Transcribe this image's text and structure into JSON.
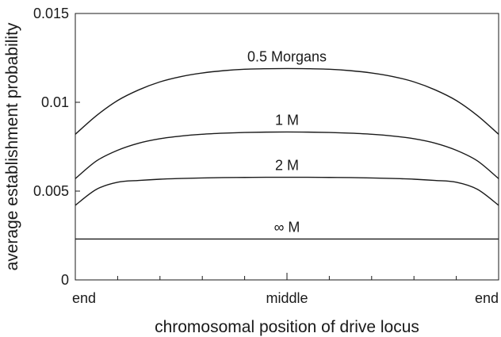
{
  "chart_data": {
    "type": "line",
    "title": "",
    "xlabel": "chromosomal position of drive locus",
    "ylabel": "average establishment probability",
    "ylim": [
      0,
      0.015
    ],
    "y_ticks": [
      "0",
      "0.005",
      "0.01",
      "0.015"
    ],
    "x_ticks": [
      "end",
      "middle",
      "end"
    ],
    "grid": false,
    "x": [
      0,
      0.05,
      0.1,
      0.15,
      0.2,
      0.25,
      0.3,
      0.35,
      0.4,
      0.45,
      0.5,
      0.55,
      0.6,
      0.65,
      0.7,
      0.75,
      0.8,
      0.85,
      0.9,
      0.95,
      1.0
    ],
    "series": [
      {
        "name": "0.5 Morgans",
        "color": "#1a1a1a",
        "values": [
          0.0082,
          0.00925,
          0.0101,
          0.0107,
          0.01115,
          0.01145,
          0.01165,
          0.01178,
          0.01186,
          0.01189,
          0.0119,
          0.01189,
          0.01186,
          0.01178,
          0.01165,
          0.01145,
          0.01115,
          0.0107,
          0.0101,
          0.00925,
          0.0082
        ]
      },
      {
        "name": "1 M",
        "color": "#1a1a1a",
        "values": [
          0.0057,
          0.0067,
          0.0073,
          0.0077,
          0.00795,
          0.0081,
          0.0082,
          0.00826,
          0.0083,
          0.00832,
          0.00833,
          0.00832,
          0.0083,
          0.00826,
          0.0082,
          0.0081,
          0.00795,
          0.0077,
          0.0073,
          0.0067,
          0.0057
        ]
      },
      {
        "name": "2 M",
        "color": "#1a1a1a",
        "values": [
          0.0042,
          0.0051,
          0.0055,
          0.0056,
          0.00567,
          0.00571,
          0.00574,
          0.00576,
          0.00577,
          0.00578,
          0.00578,
          0.00578,
          0.00577,
          0.00576,
          0.00574,
          0.00571,
          0.00567,
          0.0056,
          0.0055,
          0.0051,
          0.0042
        ]
      },
      {
        "name": "∞ M",
        "color": "#1a1a1a",
        "values": [
          0.0023,
          0.0023,
          0.0023,
          0.0023,
          0.0023,
          0.0023,
          0.0023,
          0.0023,
          0.0023,
          0.0023,
          0.0023,
          0.0023,
          0.0023,
          0.0023,
          0.0023,
          0.0023,
          0.0023,
          0.0023,
          0.0023,
          0.0023,
          0.0023
        ]
      }
    ]
  }
}
